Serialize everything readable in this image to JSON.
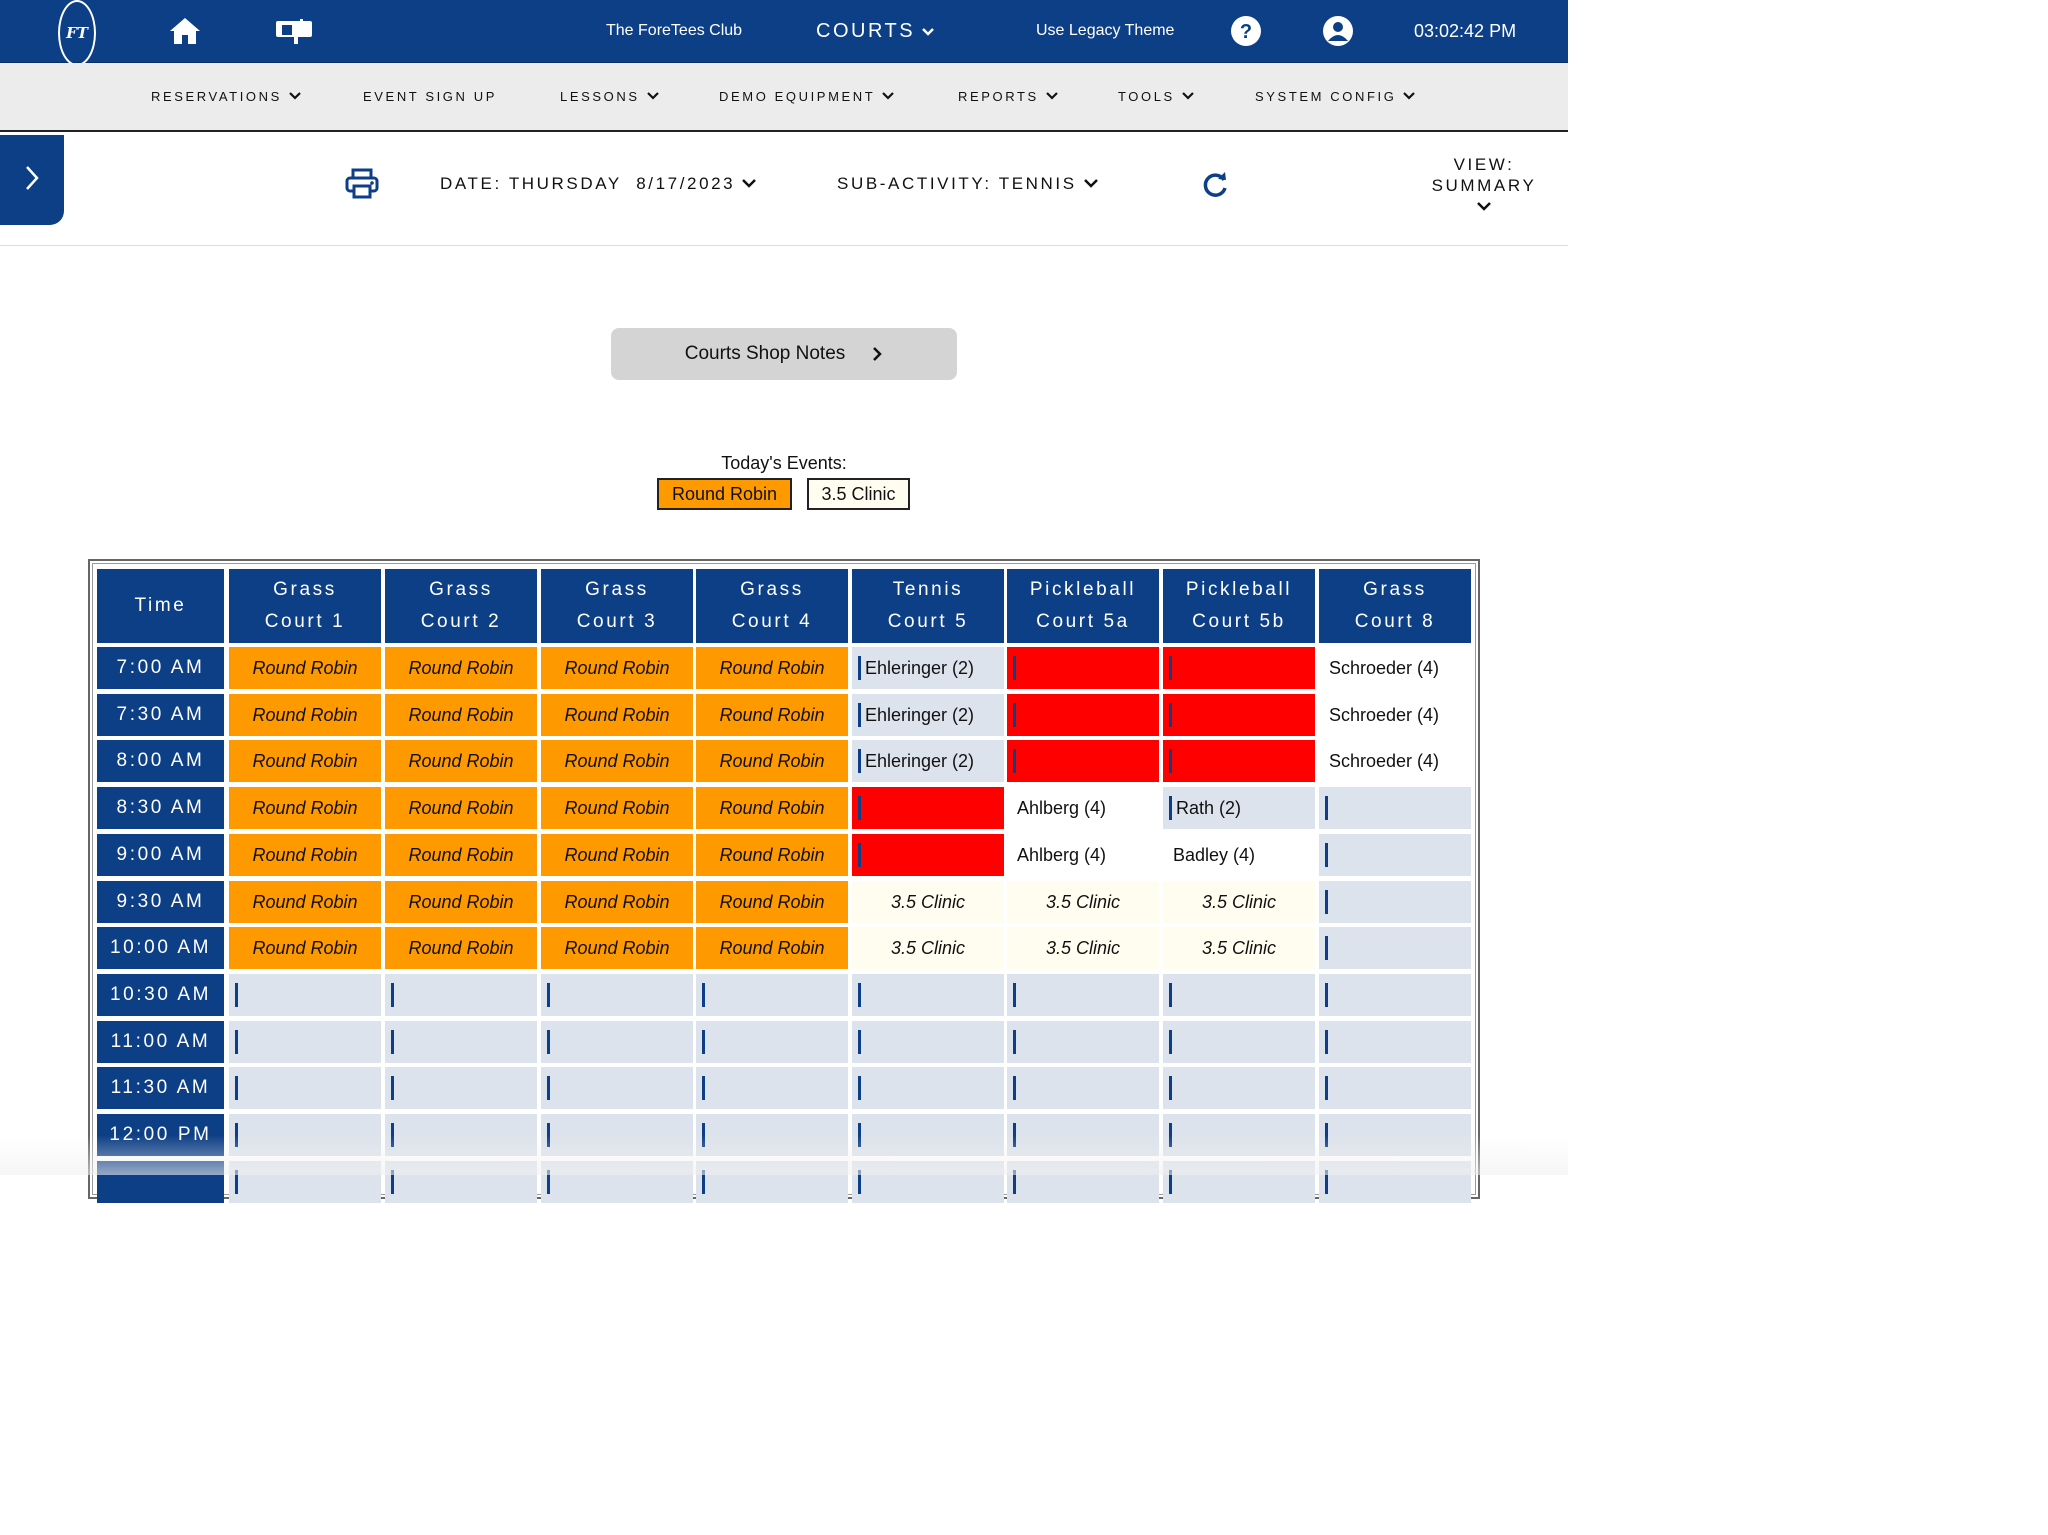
{
  "header": {
    "club_name": "The ForeTees Club",
    "module": "COURTS",
    "legacy_theme": "Use Legacy Theme",
    "clock": "03:02:42 PM",
    "logo_text": "FT"
  },
  "nav": {
    "items": [
      "RESERVATIONS",
      "EVENT SIGN UP",
      "LESSONS",
      "DEMO EQUIPMENT",
      "REPORTS",
      "TOOLS",
      "SYSTEM CONFIG"
    ]
  },
  "toolbar": {
    "date_label": "DATE: THURSDAY  8/17/2023",
    "subactivity_label": "SUB-ACTIVITY: TENNIS",
    "view_line1": "VIEW:",
    "view_line2": "SUMMARY"
  },
  "notes_button": "Courts Shop Notes",
  "events": {
    "label": "Today's Events:",
    "items": [
      {
        "name": "Round Robin",
        "color": "#ff9900"
      },
      {
        "name": "3.5 Clinic",
        "color": "#fffdf0"
      }
    ]
  },
  "grid": {
    "time_header": "Time",
    "courts": [
      [
        "Grass",
        "Court 1"
      ],
      [
        "Grass",
        "Court 2"
      ],
      [
        "Grass",
        "Court 3"
      ],
      [
        "Grass",
        "Court 4"
      ],
      [
        "Tennis",
        "Court 5"
      ],
      [
        "Pickleball",
        "Court 5a"
      ],
      [
        "Pickleball",
        "Court 5b"
      ],
      [
        "Grass",
        "Court 8"
      ]
    ],
    "rows": [
      {
        "time": "7:00 AM",
        "cells": [
          {
            "t": "event",
            "text": "Round Robin"
          },
          {
            "t": "event",
            "text": "Round Robin"
          },
          {
            "t": "event",
            "text": "Round Robin"
          },
          {
            "t": "event",
            "text": "Round Robin"
          },
          {
            "t": "name",
            "text": "Ehleringer (2)"
          },
          {
            "t": "red",
            "text": ""
          },
          {
            "t": "red",
            "text": ""
          },
          {
            "t": "white",
            "text": "Schroeder (4)"
          }
        ]
      },
      {
        "time": "7:30 AM",
        "cells": [
          {
            "t": "event",
            "text": "Round Robin"
          },
          {
            "t": "event",
            "text": "Round Robin"
          },
          {
            "t": "event",
            "text": "Round Robin"
          },
          {
            "t": "event",
            "text": "Round Robin"
          },
          {
            "t": "name",
            "text": "Ehleringer (2)"
          },
          {
            "t": "red",
            "text": ""
          },
          {
            "t": "red",
            "text": ""
          },
          {
            "t": "white",
            "text": "Schroeder (4)"
          }
        ]
      },
      {
        "time": "8:00 AM",
        "cells": [
          {
            "t": "event",
            "text": "Round Robin"
          },
          {
            "t": "event",
            "text": "Round Robin"
          },
          {
            "t": "event",
            "text": "Round Robin"
          },
          {
            "t": "event",
            "text": "Round Robin"
          },
          {
            "t": "name",
            "text": "Ehleringer (2)"
          },
          {
            "t": "red",
            "text": ""
          },
          {
            "t": "red",
            "text": ""
          },
          {
            "t": "white",
            "text": "Schroeder (4)"
          }
        ]
      },
      {
        "time": "8:30 AM",
        "cells": [
          {
            "t": "event",
            "text": "Round Robin"
          },
          {
            "t": "event",
            "text": "Round Robin"
          },
          {
            "t": "event",
            "text": "Round Robin"
          },
          {
            "t": "event",
            "text": "Round Robin"
          },
          {
            "t": "red",
            "text": ""
          },
          {
            "t": "white",
            "text": "Ahlberg (4)"
          },
          {
            "t": "name",
            "text": "Rath (2)"
          },
          {
            "t": "empty",
            "text": ""
          }
        ]
      },
      {
        "time": "9:00 AM",
        "cells": [
          {
            "t": "event",
            "text": "Round Robin"
          },
          {
            "t": "event",
            "text": "Round Robin"
          },
          {
            "t": "event",
            "text": "Round Robin"
          },
          {
            "t": "event",
            "text": "Round Robin"
          },
          {
            "t": "red",
            "text": ""
          },
          {
            "t": "white",
            "text": "Ahlberg (4)"
          },
          {
            "t": "white",
            "text": "Badley (4)"
          },
          {
            "t": "empty",
            "text": ""
          }
        ]
      },
      {
        "time": "9:30 AM",
        "cells": [
          {
            "t": "event",
            "text": "Round Robin"
          },
          {
            "t": "event",
            "text": "Round Robin"
          },
          {
            "t": "event",
            "text": "Round Robin"
          },
          {
            "t": "event",
            "text": "Round Robin"
          },
          {
            "t": "clinic",
            "text": "3.5 Clinic"
          },
          {
            "t": "clinic",
            "text": "3.5 Clinic"
          },
          {
            "t": "clinic",
            "text": "3.5 Clinic"
          },
          {
            "t": "empty",
            "text": ""
          }
        ]
      },
      {
        "time": "10:00 AM",
        "cells": [
          {
            "t": "event",
            "text": "Round Robin"
          },
          {
            "t": "event",
            "text": "Round Robin"
          },
          {
            "t": "event",
            "text": "Round Robin"
          },
          {
            "t": "event",
            "text": "Round Robin"
          },
          {
            "t": "clinic",
            "text": "3.5 Clinic"
          },
          {
            "t": "clinic",
            "text": "3.5 Clinic"
          },
          {
            "t": "clinic",
            "text": "3.5 Clinic"
          },
          {
            "t": "empty",
            "text": ""
          }
        ]
      },
      {
        "time": "10:30 AM",
        "cells": [
          {
            "t": "empty",
            "text": ""
          },
          {
            "t": "empty",
            "text": ""
          },
          {
            "t": "empty",
            "text": ""
          },
          {
            "t": "empty",
            "text": ""
          },
          {
            "t": "empty",
            "text": ""
          },
          {
            "t": "empty",
            "text": ""
          },
          {
            "t": "empty",
            "text": ""
          },
          {
            "t": "empty",
            "text": ""
          }
        ]
      },
      {
        "time": "11:00 AM",
        "cells": [
          {
            "t": "empty",
            "text": ""
          },
          {
            "t": "empty",
            "text": ""
          },
          {
            "t": "empty",
            "text": ""
          },
          {
            "t": "empty",
            "text": ""
          },
          {
            "t": "empty",
            "text": ""
          },
          {
            "t": "empty",
            "text": ""
          },
          {
            "t": "empty",
            "text": ""
          },
          {
            "t": "empty",
            "text": ""
          }
        ]
      },
      {
        "time": "11:30 AM",
        "cells": [
          {
            "t": "empty",
            "text": ""
          },
          {
            "t": "empty",
            "text": ""
          },
          {
            "t": "empty",
            "text": ""
          },
          {
            "t": "empty",
            "text": ""
          },
          {
            "t": "empty",
            "text": ""
          },
          {
            "t": "empty",
            "text": ""
          },
          {
            "t": "empty",
            "text": ""
          },
          {
            "t": "empty",
            "text": ""
          }
        ]
      },
      {
        "time": "12:00 PM",
        "cells": [
          {
            "t": "empty",
            "text": ""
          },
          {
            "t": "empty",
            "text": ""
          },
          {
            "t": "empty",
            "text": ""
          },
          {
            "t": "empty",
            "text": ""
          },
          {
            "t": "empty",
            "text": ""
          },
          {
            "t": "empty",
            "text": ""
          },
          {
            "t": "empty",
            "text": ""
          },
          {
            "t": "empty",
            "text": ""
          }
        ]
      },
      {
        "time": "",
        "cells": [
          {
            "t": "empty",
            "text": ""
          },
          {
            "t": "empty",
            "text": ""
          },
          {
            "t": "empty",
            "text": ""
          },
          {
            "t": "empty",
            "text": ""
          },
          {
            "t": "empty",
            "text": ""
          },
          {
            "t": "empty",
            "text": ""
          },
          {
            "t": "empty",
            "text": ""
          },
          {
            "t": "empty",
            "text": ""
          }
        ]
      }
    ]
  },
  "colors": {
    "brand": "#0d3f86",
    "event_round_robin": "#ff9900",
    "event_clinic": "#fffdf0",
    "blocked": "#ff0000",
    "open_slot": "#dde3ec"
  },
  "icons": {
    "home": "home-icon",
    "mail": "mailbox-icon",
    "help": "help-icon",
    "user": "user-icon",
    "print": "print-icon",
    "refresh": "refresh-icon",
    "sidebar": "chevron-right-icon"
  }
}
